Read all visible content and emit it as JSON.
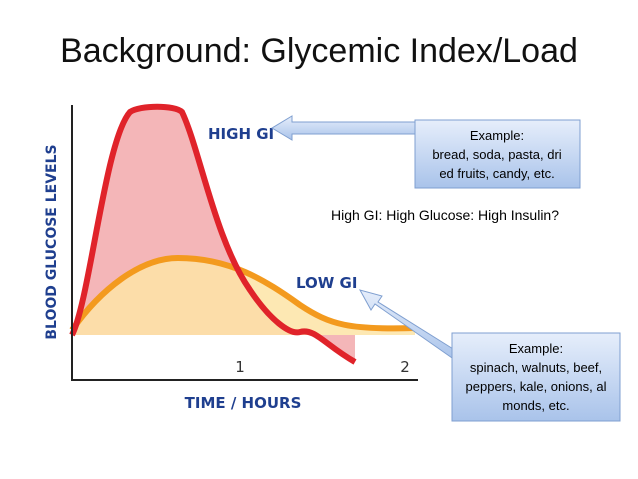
{
  "slide": {
    "title": "Background: Glycemic Index/Load",
    "figure": {
      "y_label": "BLOOD GLUCOSE LEVELS",
      "x_label": "TIME / HOURS",
      "x_ticks": [
        "1",
        "2"
      ],
      "high_label": "HIGH GI",
      "low_label": "LOW GI"
    },
    "note": "High GI: High Glucose: High Insulin?",
    "callouts": [
      {
        "heading": "Example:",
        "lines": [
          "bread, soda, pasta, dri",
          "ed fruits, candy, etc."
        ]
      },
      {
        "heading": "Example:",
        "lines": [
          "spinach, walnuts, beef,",
          "peppers, kale, onions, al",
          "monds, etc."
        ]
      }
    ]
  }
}
